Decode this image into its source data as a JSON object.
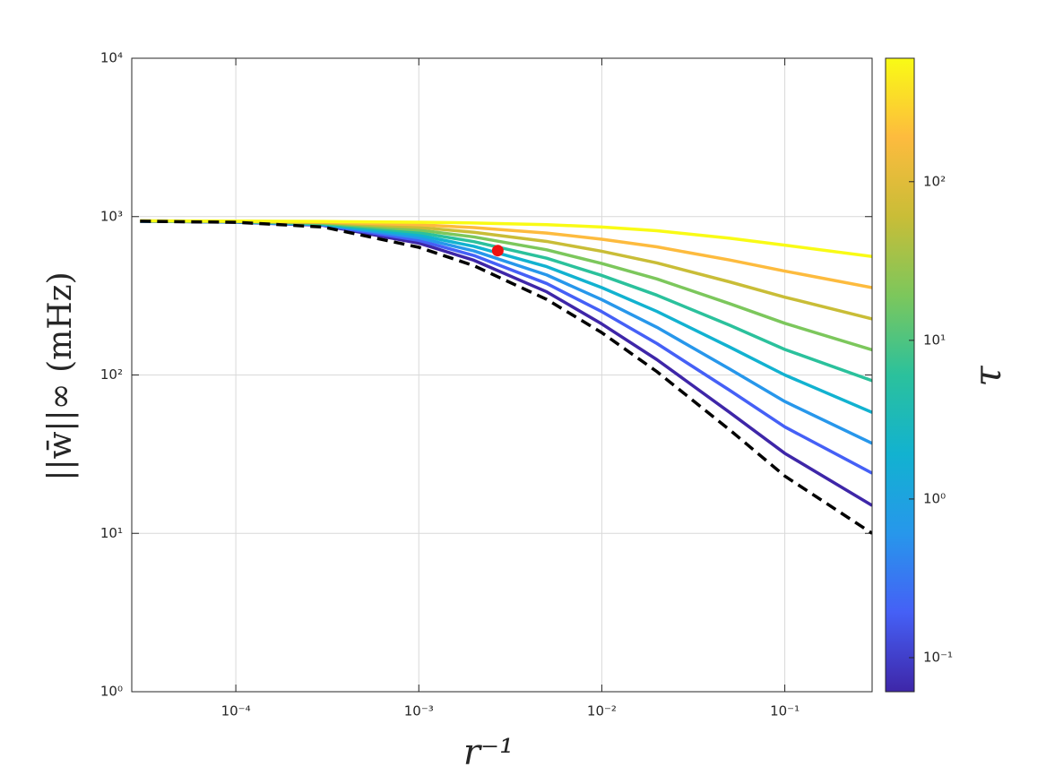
{
  "chart_data": {
    "type": "line",
    "xlabel": "r⁻¹",
    "ylabel": "||w̄||∞ (mHz)",
    "xscale": "log",
    "yscale": "log",
    "grid": true,
    "xlim": [
      2.7e-05,
      0.3
    ],
    "ylim": [
      1,
      10000
    ],
    "xticks": [
      {
        "value": 0.0001,
        "label": "10⁻⁴"
      },
      {
        "value": 0.001,
        "label": "10⁻³"
      },
      {
        "value": 0.01,
        "label": "10⁻²"
      },
      {
        "value": 0.1,
        "label": "10⁻¹"
      }
    ],
    "yticks": [
      {
        "value": 1,
        "label": "10⁰"
      },
      {
        "value": 10,
        "label": "10¹"
      },
      {
        "value": 100,
        "label": "10²"
      },
      {
        "value": 1000,
        "label": "10³"
      },
      {
        "value": 10000,
        "label": "10⁴"
      }
    ],
    "x": [
      3e-05,
      0.0001,
      0.0003,
      0.001,
      0.002,
      0.005,
      0.01,
      0.02,
      0.05,
      0.1,
      0.3
    ],
    "series": [
      {
        "color": "#3e26a8",
        "values": [
          935,
          922,
          880,
          680,
          530,
          335,
          210,
          125,
          58,
          32,
          15
        ]
      },
      {
        "color": "#4560f6",
        "values": [
          935,
          925,
          885,
          708,
          568,
          378,
          251,
          158,
          80,
          47,
          24
        ]
      },
      {
        "color": "#2797eb",
        "values": [
          935,
          926,
          890,
          735,
          607,
          428,
          299,
          200,
          109,
          68,
          37
        ]
      },
      {
        "color": "#12b2d0",
        "values": [
          936,
          928,
          895,
          763,
          649,
          483,
          356,
          252,
          150,
          100,
          58
        ]
      },
      {
        "color": "#2bc19c",
        "values": [
          937,
          930,
          900,
          793,
          695,
          546,
          425,
          319,
          206,
          145,
          92
        ]
      },
      {
        "color": "#7cc75c",
        "values": [
          938,
          932,
          910,
          823,
          744,
          617,
          506,
          404,
          282,
          212,
          144
        ]
      },
      {
        "color": "#c9bd37",
        "values": [
          938,
          934,
          918,
          855,
          796,
          697,
          604,
          510,
          387,
          310,
          226
        ]
      },
      {
        "color": "#fdbb3e",
        "values": [
          939,
          935,
          925,
          888,
          852,
          787,
          720,
          644,
          532,
          453,
          356
        ]
      },
      {
        "color": "#f9fb15",
        "values": [
          940,
          937,
          932,
          922,
          912,
          890,
          860,
          815,
          730,
          660,
          560
        ]
      },
      {
        "color": "#000000",
        "dashed": true,
        "values": [
          935,
          920,
          860,
          640,
          490,
          300,
          185,
          105,
          45,
          23,
          10
        ]
      }
    ],
    "points": [
      {
        "x": 0.0027,
        "y": 610,
        "color": "#ee1111"
      }
    ],
    "colorbar": {
      "label": "τ",
      "scale": "log",
      "lim": [
        0.061,
        600
      ],
      "ticks": [
        {
          "value": 0.1,
          "label": "10⁻¹"
        },
        {
          "value": 1,
          "label": "10⁰"
        },
        {
          "value": 10,
          "label": "10¹"
        },
        {
          "value": 100,
          "label": "10²"
        }
      ]
    }
  }
}
